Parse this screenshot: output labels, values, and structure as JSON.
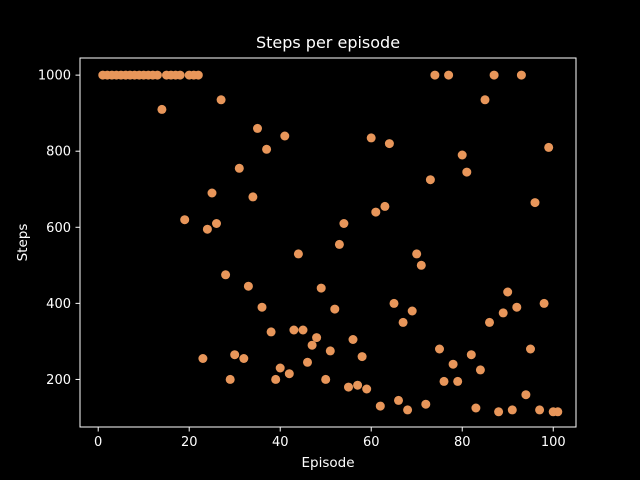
{
  "chart_data": {
    "type": "scatter",
    "title": "Steps per episode",
    "xlabel": "Episode",
    "ylabel": "Steps",
    "xlim": [
      -4,
      105
    ],
    "ylim": [
      75,
      1045
    ],
    "xticks": [
      0,
      20,
      40,
      60,
      80,
      100
    ],
    "yticks": [
      200,
      400,
      600,
      800,
      1000
    ],
    "grid": false,
    "colors": {
      "background": "#000000",
      "axes": "#ffffff",
      "point": "#e8965a"
    },
    "series": [
      {
        "x": [
          1,
          2,
          3,
          4,
          5,
          6,
          7,
          8,
          9,
          10,
          11,
          12,
          13,
          14,
          15,
          16,
          17,
          18,
          19,
          20,
          21,
          22,
          23,
          24,
          25,
          26,
          27,
          28,
          29,
          30,
          31,
          32,
          33,
          34,
          35,
          36,
          37,
          38,
          39,
          40,
          41,
          42,
          43,
          44,
          45,
          46,
          47,
          48,
          49,
          50,
          51,
          52,
          53,
          54,
          55,
          56,
          57,
          58,
          59,
          60,
          61,
          62,
          63,
          64,
          65,
          66,
          67,
          68,
          69,
          70,
          71,
          72,
          73,
          74,
          75,
          76,
          77,
          78,
          79,
          80,
          81,
          82,
          83,
          84,
          85,
          86,
          87,
          88,
          89,
          90,
          91,
          92,
          93,
          94,
          95,
          96,
          97,
          98,
          99,
          100,
          101
        ],
        "y": [
          1000,
          1000,
          1000,
          1000,
          1000,
          1000,
          1000,
          1000,
          1000,
          1000,
          1000,
          1000,
          1000,
          910,
          1000,
          1000,
          1000,
          1000,
          620,
          1000,
          1000,
          1000,
          255,
          595,
          690,
          610,
          935,
          475,
          200,
          265,
          755,
          255,
          445,
          680,
          860,
          390,
          805,
          325,
          200,
          230,
          840,
          215,
          330,
          530,
          330,
          245,
          290,
          310,
          440,
          200,
          275,
          385,
          555,
          610,
          180,
          305,
          185,
          260,
          175,
          835,
          640,
          130,
          655,
          820,
          400,
          145,
          350,
          120,
          380,
          530,
          500,
          135,
          725,
          1000,
          280,
          195,
          1000,
          240,
          195,
          790,
          745,
          265,
          125,
          225,
          935,
          350,
          1000,
          115,
          375,
          430,
          120,
          390,
          1000,
          160,
          280,
          665,
          120,
          400,
          810,
          115,
          115
        ]
      }
    ]
  }
}
